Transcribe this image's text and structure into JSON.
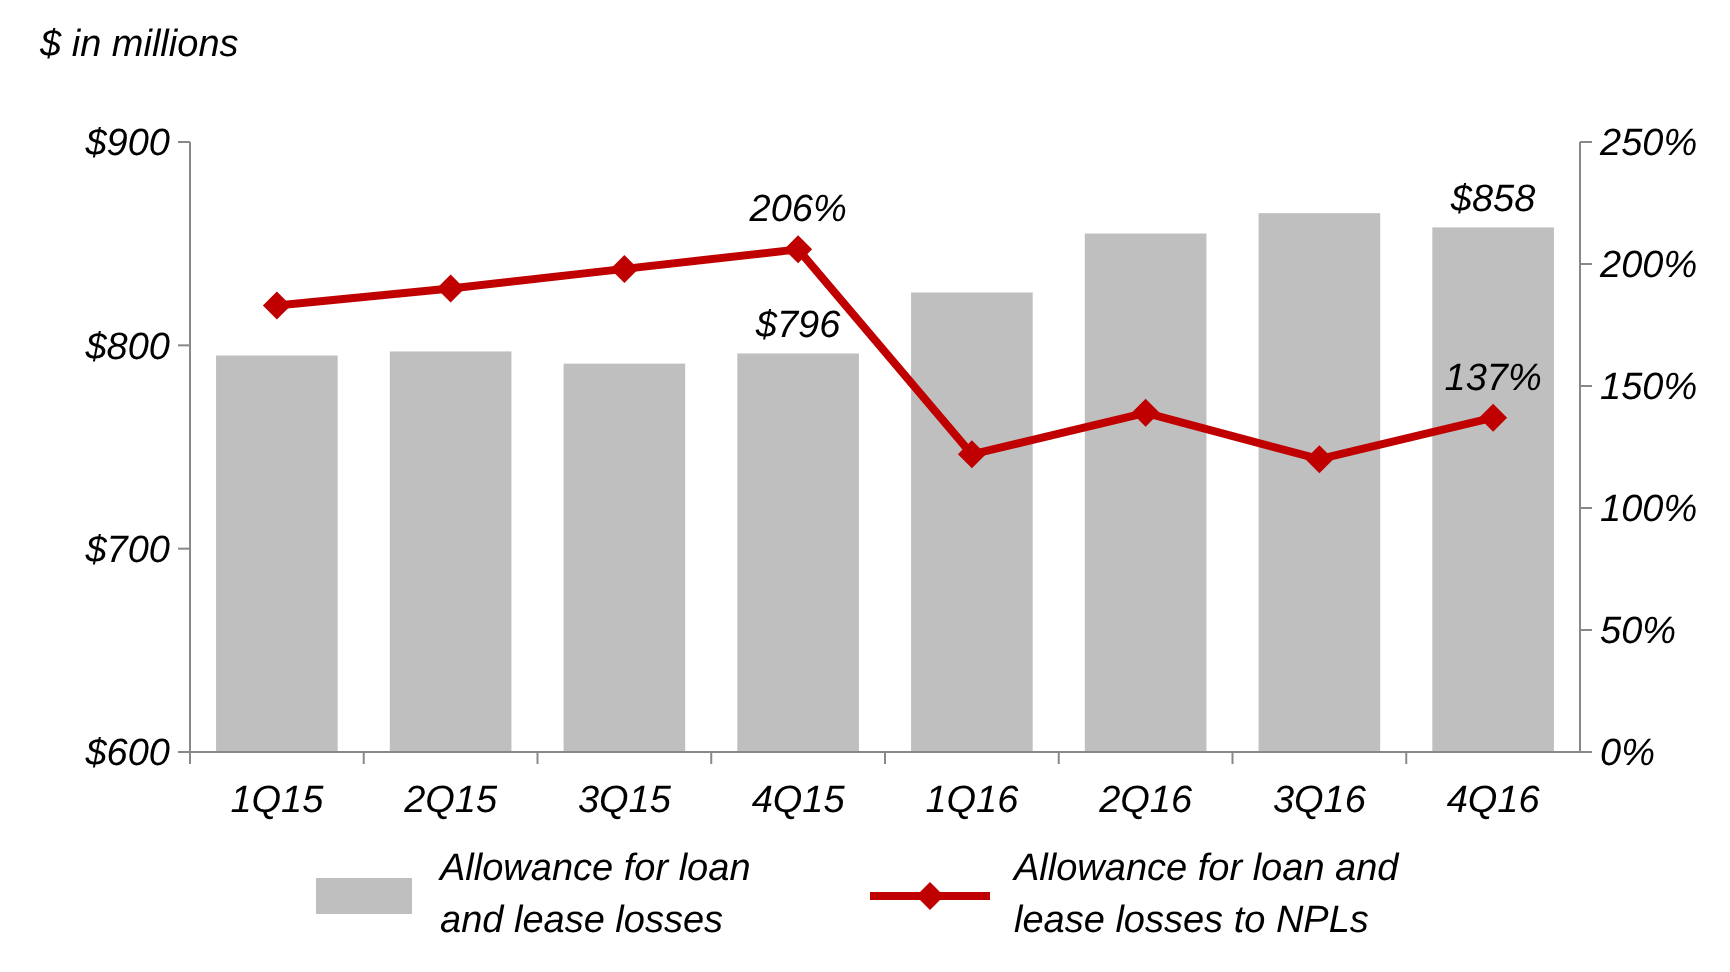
{
  "chart_data": {
    "type": "bar",
    "ylabel": "$ in millions",
    "categories": [
      "1Q15",
      "2Q15",
      "3Q15",
      "4Q15",
      "1Q16",
      "2Q16",
      "3Q16",
      "4Q16"
    ],
    "series": [
      {
        "name": "Allowance for loan and lease losses",
        "color": "#bfbfbf",
        "values": [
          795,
          797,
          791,
          796,
          826,
          855,
          865,
          858
        ],
        "value_labels": [
          null,
          null,
          null,
          "$796",
          null,
          null,
          null,
          "$858"
        ]
      },
      {
        "name": "Allowance for loan and lease losses to NPLs",
        "type": "line",
        "axis": "y2",
        "color": "#c00000",
        "marker": "diamond",
        "values": [
          183,
          190,
          198,
          206,
          122,
          139,
          120,
          137
        ],
        "value_labels": [
          null,
          null,
          null,
          "206%",
          null,
          null,
          null,
          "137%"
        ]
      }
    ],
    "ylim": [
      600,
      900
    ],
    "yticks": [
      {
        "value": 600,
        "label": "$600"
      },
      {
        "value": 700,
        "label": "$700"
      },
      {
        "value": 800,
        "label": "$800"
      },
      {
        "value": 900,
        "label": "$900"
      }
    ],
    "y2lim": [
      0,
      250
    ],
    "y2ticks": [
      {
        "value": 0,
        "label": "0%"
      },
      {
        "value": 50,
        "label": "50%"
      },
      {
        "value": 100,
        "label": "100%"
      },
      {
        "value": 150,
        "label": "150%"
      },
      {
        "value": 200,
        "label": "200%"
      },
      {
        "value": 250,
        "label": "250%"
      }
    ],
    "grid": false,
    "legend": "bottom"
  }
}
